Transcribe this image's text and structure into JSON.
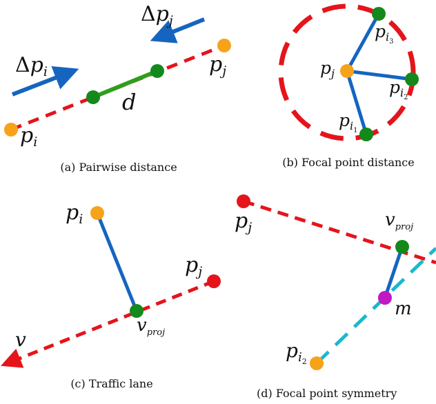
{
  "captions": {
    "a": "(a) Pairwise distance",
    "b": "(b) Focal point distance",
    "c": "(c) Traffic lane",
    "d": "(d) Focal point symmetry"
  },
  "labels": {
    "p": "p",
    "i": "i",
    "j": "j",
    "i1": "i",
    "i2": "i",
    "i3": "i",
    "one": "1",
    "two": "2",
    "three": "3",
    "delta": "Δ",
    "d": "d",
    "v": "v",
    "proj": "proj",
    "m": "m"
  },
  "colors": {
    "red": "#e5141b",
    "blue": "#1565c0",
    "green": "#2e9e1e",
    "dot_green": "#14891b",
    "orange": "#f7a21b",
    "cyan": "#1ab8cf",
    "magenta": "#c218c4"
  }
}
